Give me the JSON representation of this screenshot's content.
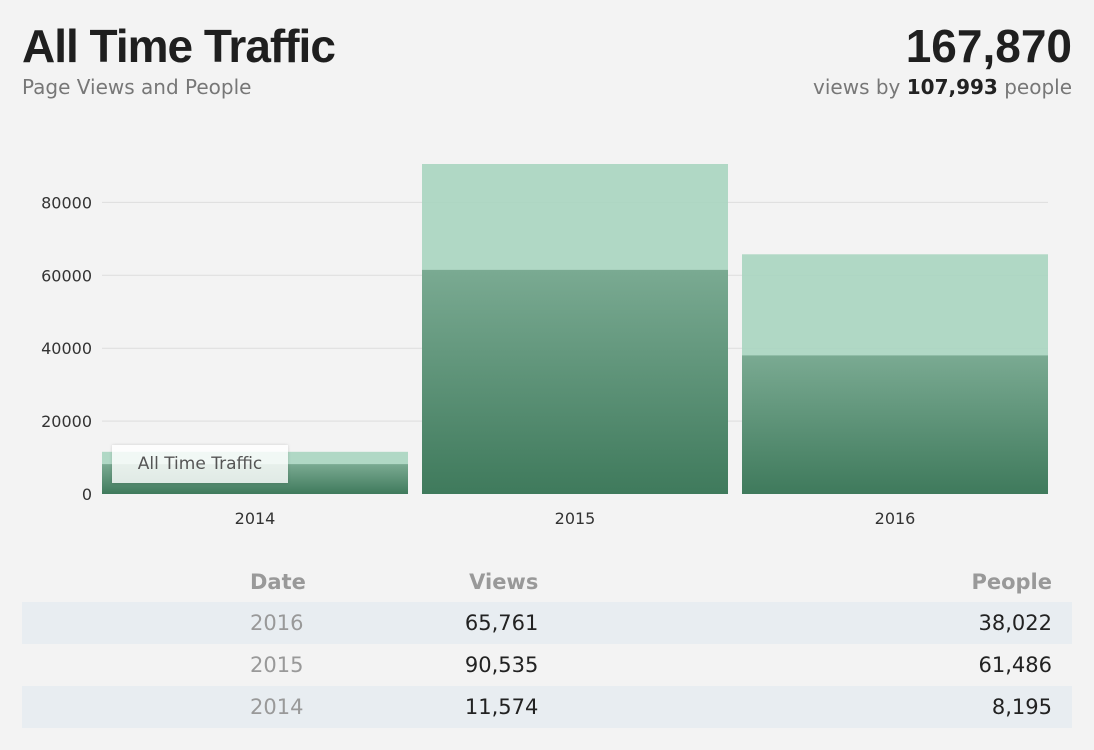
{
  "header": {
    "title": "All Time Traffic",
    "subtitle": "Page Views and People",
    "total_views": "167,870",
    "views_by_prefix": "views by",
    "total_people": "107,993",
    "people_suffix": "people"
  },
  "tooltip": {
    "label": "All Time Traffic"
  },
  "colors": {
    "views_bar": "#a8d5c0",
    "people_bar": "#3f7a5c",
    "grid": "#dddddd",
    "row_stripe": "#e8edf1"
  },
  "chart_data": {
    "type": "bar",
    "categories": [
      "2014",
      "2015",
      "2016"
    ],
    "series": [
      {
        "name": "Views",
        "values": [
          11574,
          90535,
          65761
        ]
      },
      {
        "name": "People",
        "values": [
          8195,
          61486,
          38022
        ]
      }
    ],
    "y_ticks": [
      "0",
      "20000",
      "40000",
      "60000",
      "80000"
    ],
    "ylim": [
      0,
      90535
    ],
    "grid": true
  },
  "table": {
    "headers": {
      "date": "Date",
      "views": "Views",
      "people": "People"
    },
    "rows": [
      {
        "date": "2016",
        "views": "65,761",
        "people": "38,022"
      },
      {
        "date": "2015",
        "views": "90,535",
        "people": "61,486"
      },
      {
        "date": "2014",
        "views": "11,574",
        "people": "8,195"
      }
    ]
  }
}
